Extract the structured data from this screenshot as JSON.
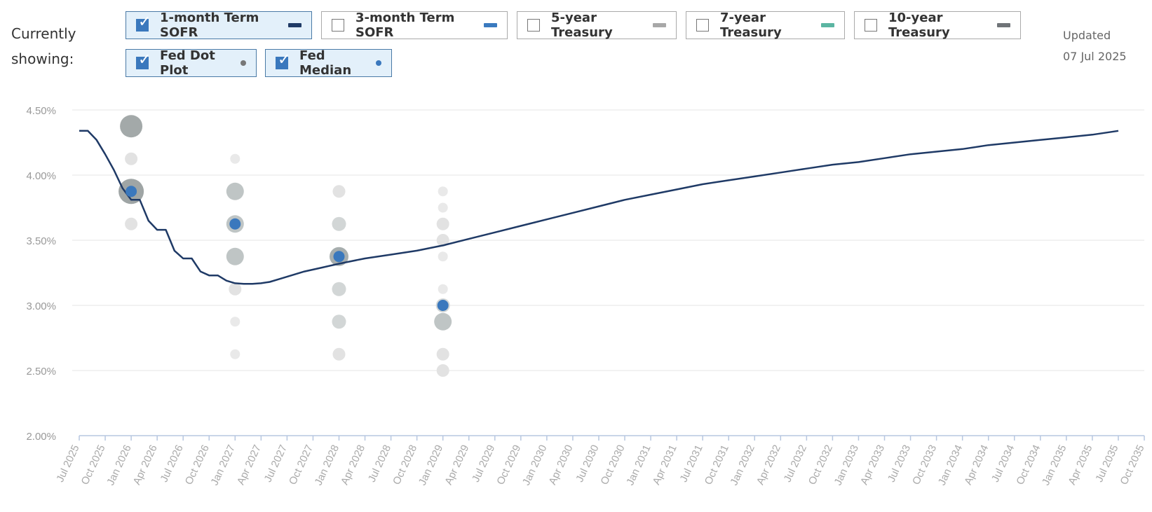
{
  "legend": {
    "prefix": "Currently showing:",
    "toggles": [
      {
        "label": "1-month Term SOFR",
        "checked": true,
        "color": "#1f3a66",
        "marker": "bar"
      },
      {
        "label": "3-month Term SOFR",
        "checked": false,
        "color": "#3a7abf",
        "marker": "bar"
      },
      {
        "label": "5-year Treasury",
        "checked": false,
        "color": "#a8a8a8",
        "marker": "bar"
      },
      {
        "label": "7-year Treasury",
        "checked": false,
        "color": "#5bb5a2",
        "marker": "bar"
      },
      {
        "label": "10-year Treasury",
        "checked": false,
        "color": "#707478",
        "marker": "bar"
      },
      {
        "label": "Fed Dot Plot",
        "checked": true,
        "color": "#777777",
        "marker": "dot"
      },
      {
        "label": "Fed Median",
        "checked": true,
        "color": "#3a78bd",
        "marker": "dot"
      }
    ]
  },
  "updated": {
    "label": "Updated",
    "date": "07 Jul 2025"
  },
  "chart_data": {
    "type": "line",
    "ylim": [
      2.0,
      4.5
    ],
    "yticks": [
      2.0,
      2.5,
      3.0,
      3.5,
      4.0,
      4.5
    ],
    "ytick_labels": [
      "2.00%",
      "2.50%",
      "3.00%",
      "3.50%",
      "4.00%",
      "4.50%"
    ],
    "xlim": [
      "2025-07",
      "2035-10"
    ],
    "xtick_labels": [
      "Jul 2025",
      "Oct 2025",
      "Jan 2026",
      "Apr 2026",
      "Jul 2026",
      "Oct 2026",
      "Jan 2027",
      "Apr 2027",
      "Jul 2027",
      "Oct 2027",
      "Jan 2028",
      "Apr 2028",
      "Jul 2028",
      "Oct 2028",
      "Jan 2029",
      "Apr 2029",
      "Jul 2029",
      "Oct 2029",
      "Jan 2030",
      "Apr 2030",
      "Jul 2030",
      "Oct 2030",
      "Jan 2031",
      "Apr 2031",
      "Jul 2031",
      "Oct 2031",
      "Jan 2032",
      "Apr 2032",
      "Jul 2032",
      "Oct 2032",
      "Jan 2033",
      "Apr 2033",
      "Jul 2033",
      "Oct 2033",
      "Jan 2034",
      "Apr 2034",
      "Jul 2034",
      "Oct 2034",
      "Jan 2035",
      "Apr 2035",
      "Jul 2035",
      "Oct 2035"
    ],
    "grid": true,
    "series": [
      {
        "name": "1-month Term SOFR",
        "color": "#1f3a66",
        "points": [
          [
            "2025-07",
            4.34
          ],
          [
            "2025-08",
            4.34
          ],
          [
            "2025-09",
            4.27
          ],
          [
            "2025-10",
            4.16
          ],
          [
            "2025-11",
            4.04
          ],
          [
            "2025-12",
            3.9
          ],
          [
            "2026-01",
            3.81
          ],
          [
            "2026-02",
            3.81
          ],
          [
            "2026-03",
            3.65
          ],
          [
            "2026-04",
            3.58
          ],
          [
            "2026-05",
            3.58
          ],
          [
            "2026-06",
            3.42
          ],
          [
            "2026-07",
            3.36
          ],
          [
            "2026-08",
            3.36
          ],
          [
            "2026-09",
            3.26
          ],
          [
            "2026-10",
            3.23
          ],
          [
            "2026-11",
            3.23
          ],
          [
            "2026-12",
            3.19
          ],
          [
            "2027-01",
            3.17
          ],
          [
            "2027-02",
            3.165
          ],
          [
            "2027-03",
            3.165
          ],
          [
            "2027-04",
            3.17
          ],
          [
            "2027-05",
            3.18
          ],
          [
            "2027-06",
            3.2
          ],
          [
            "2027-07",
            3.22
          ],
          [
            "2027-09",
            3.26
          ],
          [
            "2027-11",
            3.29
          ],
          [
            "2028-01",
            3.32
          ],
          [
            "2028-04",
            3.36
          ],
          [
            "2028-07",
            3.39
          ],
          [
            "2028-10",
            3.42
          ],
          [
            "2029-01",
            3.46
          ],
          [
            "2029-04",
            3.51
          ],
          [
            "2029-07",
            3.56
          ],
          [
            "2029-10",
            3.61
          ],
          [
            "2030-01",
            3.66
          ],
          [
            "2030-04",
            3.71
          ],
          [
            "2030-07",
            3.76
          ],
          [
            "2030-10",
            3.81
          ],
          [
            "2031-01",
            3.85
          ],
          [
            "2031-04",
            3.89
          ],
          [
            "2031-07",
            3.93
          ],
          [
            "2031-10",
            3.96
          ],
          [
            "2032-01",
            3.99
          ],
          [
            "2032-04",
            4.02
          ],
          [
            "2032-07",
            4.05
          ],
          [
            "2032-10",
            4.08
          ],
          [
            "2033-01",
            4.1
          ],
          [
            "2033-04",
            4.13
          ],
          [
            "2033-07",
            4.16
          ],
          [
            "2033-10",
            4.18
          ],
          [
            "2034-01",
            4.2
          ],
          [
            "2034-04",
            4.23
          ],
          [
            "2034-07",
            4.25
          ],
          [
            "2034-10",
            4.27
          ],
          [
            "2035-01",
            4.29
          ],
          [
            "2035-04",
            4.31
          ],
          [
            "2035-07",
            4.34
          ]
        ]
      }
    ],
    "fed_dot_plot": [
      {
        "x": "2026-01",
        "y": 4.375,
        "count": 6
      },
      {
        "x": "2026-01",
        "y": 4.125,
        "count": 1
      },
      {
        "x": "2026-01",
        "y": 3.875,
        "count": 7
      },
      {
        "x": "2026-01",
        "y": 3.625,
        "count": 1
      },
      {
        "x": "2027-01",
        "y": 4.125,
        "count": 0.5
      },
      {
        "x": "2027-01",
        "y": 3.875,
        "count": 3
      },
      {
        "x": "2027-01",
        "y": 3.625,
        "count": 3
      },
      {
        "x": "2027-01",
        "y": 3.375,
        "count": 3
      },
      {
        "x": "2027-01",
        "y": 3.125,
        "count": 1
      },
      {
        "x": "2027-01",
        "y": 2.875,
        "count": 0.5
      },
      {
        "x": "2027-01",
        "y": 2.625,
        "count": 0.5
      },
      {
        "x": "2028-01",
        "y": 3.875,
        "count": 1
      },
      {
        "x": "2028-01",
        "y": 3.625,
        "count": 2
      },
      {
        "x": "2028-01",
        "y": 3.375,
        "count": 4
      },
      {
        "x": "2028-01",
        "y": 3.125,
        "count": 2
      },
      {
        "x": "2028-01",
        "y": 2.875,
        "count": 2
      },
      {
        "x": "2028-01",
        "y": 2.625,
        "count": 1
      },
      {
        "x": "2029-01",
        "y": 3.875,
        "count": 0.5
      },
      {
        "x": "2029-01",
        "y": 3.75,
        "count": 0.5
      },
      {
        "x": "2029-01",
        "y": 3.625,
        "count": 1
      },
      {
        "x": "2029-01",
        "y": 3.5,
        "count": 1
      },
      {
        "x": "2029-01",
        "y": 3.375,
        "count": 0.5
      },
      {
        "x": "2029-01",
        "y": 3.125,
        "count": 0.5
      },
      {
        "x": "2029-01",
        "y": 3.0,
        "count": 2
      },
      {
        "x": "2029-01",
        "y": 2.875,
        "count": 3
      },
      {
        "x": "2029-01",
        "y": 2.625,
        "count": 1
      },
      {
        "x": "2029-01",
        "y": 2.5,
        "count": 1
      }
    ],
    "fed_median": [
      {
        "x": "2026-01",
        "y": 3.875
      },
      {
        "x": "2027-01",
        "y": 3.625
      },
      {
        "x": "2028-01",
        "y": 3.375
      },
      {
        "x": "2029-01",
        "y": 3.0
      }
    ]
  }
}
